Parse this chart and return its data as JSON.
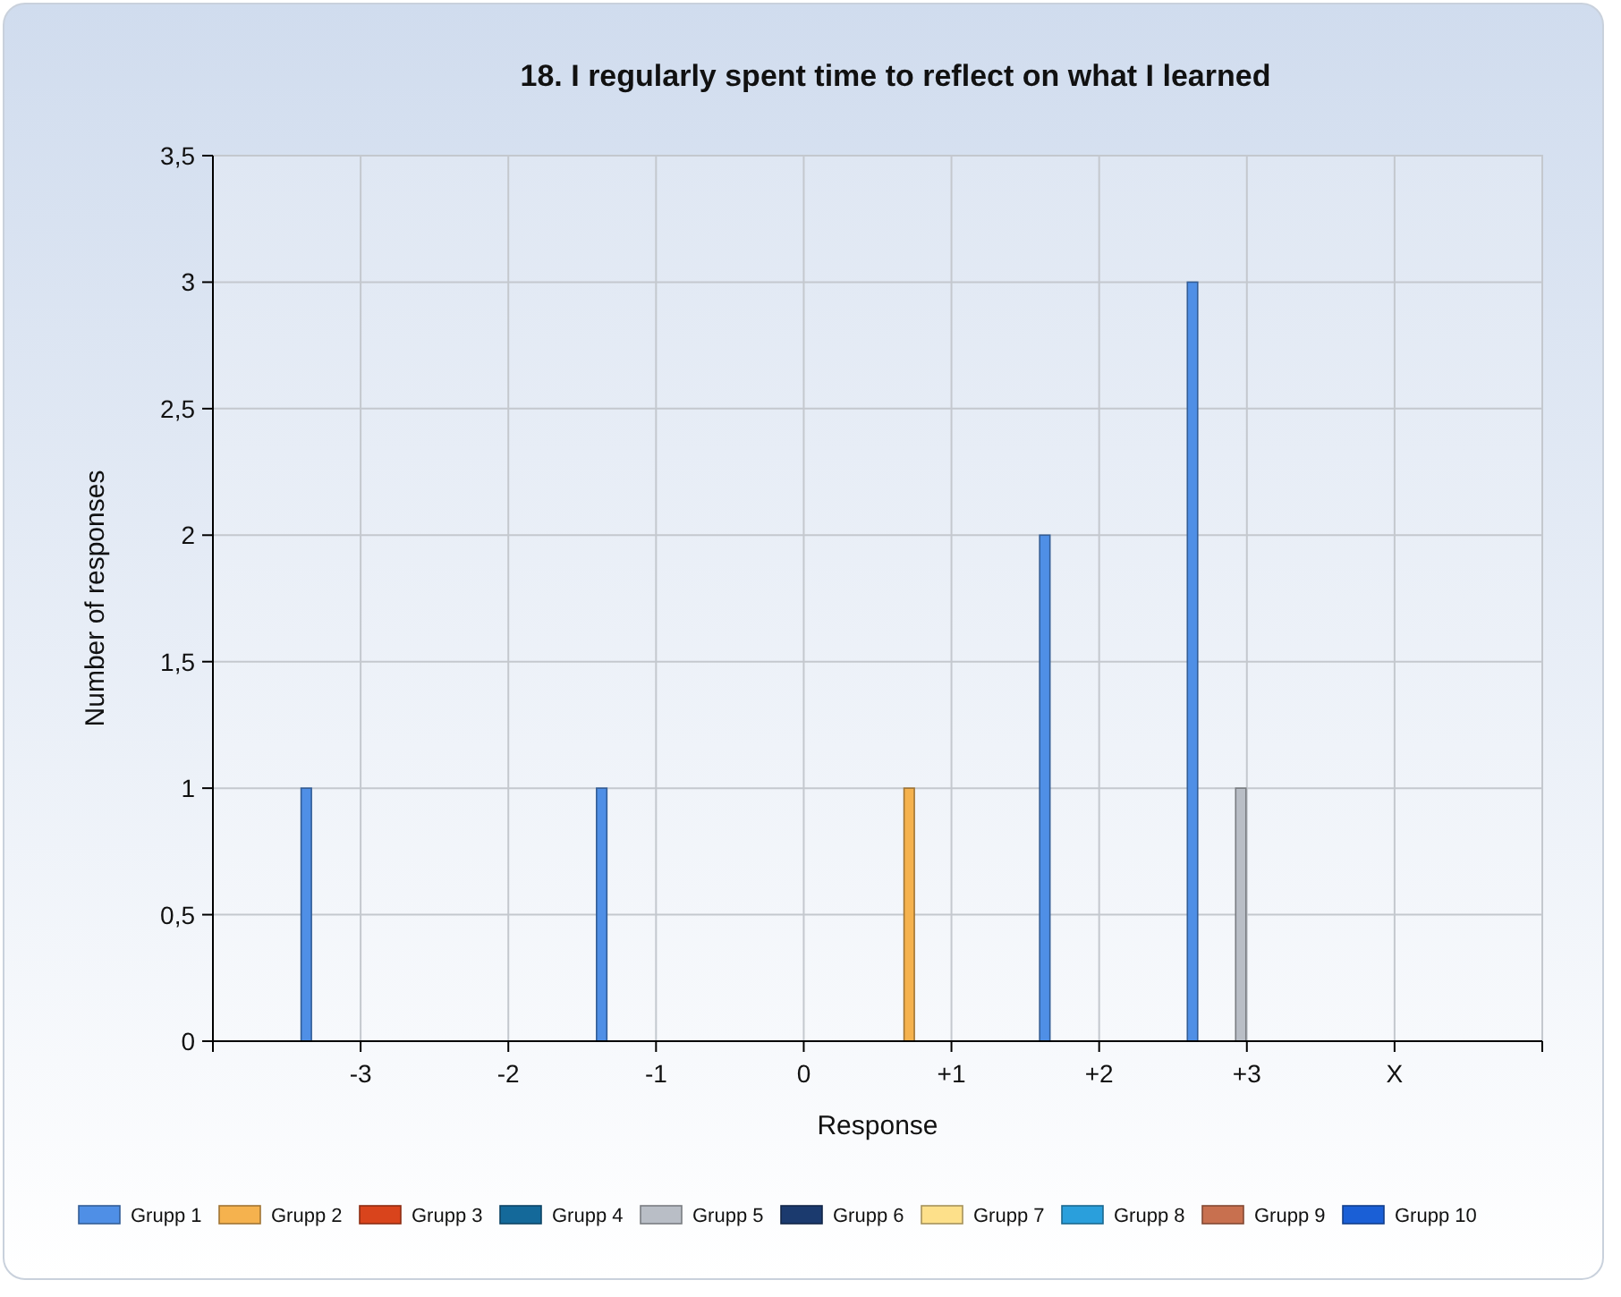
{
  "chart_data": {
    "type": "bar",
    "title": "18. I regularly spent time to reflect on what I learned",
    "xlabel": "Response",
    "ylabel": "Number of responses",
    "categories": [
      "-3",
      "-2",
      "-1",
      "0",
      "+1",
      "+2",
      "+3",
      "X"
    ],
    "series": [
      {
        "name": "Grupp 1",
        "color": "#4f8fe6",
        "values": [
          1,
          0,
          1,
          0,
          0,
          2,
          3,
          0
        ]
      },
      {
        "name": "Grupp 2",
        "color": "#f5b24e",
        "values": [
          0,
          0,
          0,
          0,
          1,
          0,
          0,
          0
        ]
      },
      {
        "name": "Grupp 3",
        "color": "#d9441c",
        "values": [
          0,
          0,
          0,
          0,
          0,
          0,
          0,
          0
        ]
      },
      {
        "name": "Grupp 4",
        "color": "#14699a",
        "values": [
          0,
          0,
          0,
          0,
          0,
          0,
          0,
          0
        ]
      },
      {
        "name": "Grupp 5",
        "color": "#b9bec6",
        "values": [
          0,
          0,
          0,
          0,
          0,
          0,
          1,
          0
        ]
      },
      {
        "name": "Grupp 6",
        "color": "#1b3a6e",
        "values": [
          0,
          0,
          0,
          0,
          0,
          0,
          0,
          0
        ]
      },
      {
        "name": "Grupp 7",
        "color": "#fde08a",
        "values": [
          0,
          0,
          0,
          0,
          0,
          0,
          0,
          0
        ]
      },
      {
        "name": "Grupp 8",
        "color": "#2a9fdc",
        "values": [
          0,
          0,
          0,
          0,
          0,
          0,
          0,
          0
        ]
      },
      {
        "name": "Grupp 9",
        "color": "#c8704f",
        "values": [
          0,
          0,
          0,
          0,
          0,
          0,
          0,
          0
        ]
      },
      {
        "name": "Grupp 10",
        "color": "#1a5fd6",
        "values": [
          0,
          0,
          0,
          0,
          0,
          0,
          0,
          0
        ]
      }
    ],
    "ylim": [
      0,
      3.5
    ],
    "yticks": [
      0,
      {
        "value": 0.5,
        "label": "0,5"
      },
      1,
      {
        "value": 1.5,
        "label": "1,5"
      },
      2,
      {
        "value": 2.5,
        "label": "2,5"
      },
      3,
      {
        "value": 3.5,
        "label": "3,5"
      }
    ],
    "grid": true,
    "legend": "bottom"
  }
}
